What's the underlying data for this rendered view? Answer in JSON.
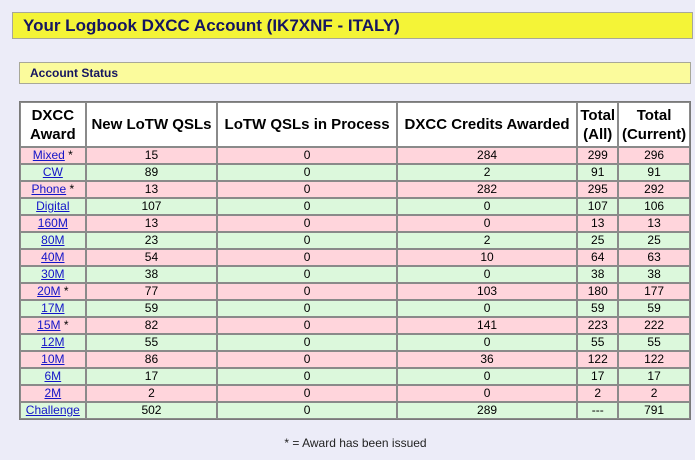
{
  "header": {
    "title": "Your Logbook DXCC Account (IK7XNF - ITALY)"
  },
  "section": {
    "title": "Account Status"
  },
  "table": {
    "columns": [
      "DXCC Award",
      "New LoTW QSLs",
      "LoTW QSLs in Process",
      "DXCC Credits Awarded",
      "Total (All)",
      "Total (Current)"
    ],
    "rows": [
      {
        "award": "Mixed",
        "issued": " *",
        "new_qsls": "15",
        "in_process": "0",
        "credits": "284",
        "total_all": "299",
        "total_current": "296"
      },
      {
        "award": "CW",
        "issued": "",
        "new_qsls": "89",
        "in_process": "0",
        "credits": "2",
        "total_all": "91",
        "total_current": "91"
      },
      {
        "award": "Phone",
        "issued": " *",
        "new_qsls": "13",
        "in_process": "0",
        "credits": "282",
        "total_all": "295",
        "total_current": "292"
      },
      {
        "award": "Digital",
        "issued": "",
        "new_qsls": "107",
        "in_process": "0",
        "credits": "0",
        "total_all": "107",
        "total_current": "106"
      },
      {
        "award": "160M",
        "issued": "",
        "new_qsls": "13",
        "in_process": "0",
        "credits": "0",
        "total_all": "13",
        "total_current": "13"
      },
      {
        "award": "80M",
        "issued": "",
        "new_qsls": "23",
        "in_process": "0",
        "credits": "2",
        "total_all": "25",
        "total_current": "25"
      },
      {
        "award": "40M",
        "issued": "",
        "new_qsls": "54",
        "in_process": "0",
        "credits": "10",
        "total_all": "64",
        "total_current": "63"
      },
      {
        "award": "30M",
        "issued": "",
        "new_qsls": "38",
        "in_process": "0",
        "credits": "0",
        "total_all": "38",
        "total_current": "38"
      },
      {
        "award": "20M",
        "issued": " *",
        "new_qsls": "77",
        "in_process": "0",
        "credits": "103",
        "total_all": "180",
        "total_current": "177"
      },
      {
        "award": "17M",
        "issued": "",
        "new_qsls": "59",
        "in_process": "0",
        "credits": "0",
        "total_all": "59",
        "total_current": "59"
      },
      {
        "award": "15M",
        "issued": " *",
        "new_qsls": "82",
        "in_process": "0",
        "credits": "141",
        "total_all": "223",
        "total_current": "222"
      },
      {
        "award": "12M",
        "issued": "",
        "new_qsls": "55",
        "in_process": "0",
        "credits": "0",
        "total_all": "55",
        "total_current": "55"
      },
      {
        "award": "10M",
        "issued": "",
        "new_qsls": "86",
        "in_process": "0",
        "credits": "36",
        "total_all": "122",
        "total_current": "122"
      },
      {
        "award": "6M",
        "issued": "",
        "new_qsls": "17",
        "in_process": "0",
        "credits": "0",
        "total_all": "17",
        "total_current": "17"
      },
      {
        "award": "2M",
        "issued": "",
        "new_qsls": "2",
        "in_process": "0",
        "credits": "0",
        "total_all": "2",
        "total_current": "2"
      },
      {
        "award": "Challenge",
        "issued": "",
        "new_qsls": "502",
        "in_process": "0",
        "credits": "289",
        "total_all": "---",
        "total_current": "791"
      }
    ]
  },
  "footnote": "* = Award has been issued",
  "colors": {
    "banner_bg": "#f4f437",
    "section_bg": "#fbfb9c",
    "title_text": "#151560",
    "row_pink": "#ffd5dc",
    "row_green": "#dcf8dc",
    "link": "#1414c8",
    "page_bg": "#ececf8"
  }
}
